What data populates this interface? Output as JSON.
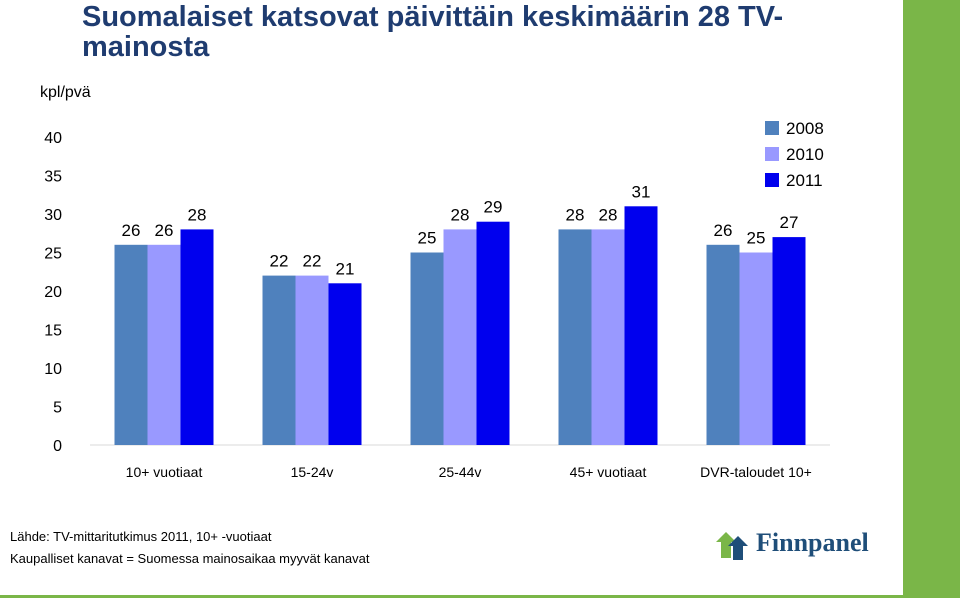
{
  "header": {
    "title": "Suomalaiset katsovat päivittäin keskimäärin 28 TV-mainosta",
    "unit_label": "kpl/pvä"
  },
  "chart_data": {
    "type": "bar",
    "title": "Suomalaiset katsovat päivittäin keskimäärin 28 TV-mainosta",
    "ylabel": "kpl/pvä",
    "xlabel": "",
    "categories": [
      "10+ vuotiaat",
      "15-24v",
      "25-44v",
      "45+ vuotiaat",
      "DVR-taloudet 10+"
    ],
    "series": [
      {
        "name": "2008",
        "color": "#4f81bd",
        "values": [
          26,
          22,
          25,
          28,
          26
        ]
      },
      {
        "name": "2010",
        "color": "#9999ff",
        "values": [
          26,
          22,
          28,
          28,
          25
        ]
      },
      {
        "name": "2011",
        "color": "#0000ee",
        "values": [
          28,
          21,
          29,
          31,
          27
        ]
      }
    ],
    "ylim": [
      0,
      40
    ],
    "yticks": [
      0,
      5,
      10,
      15,
      20,
      25,
      30,
      35,
      40
    ],
    "grid": false,
    "legend_position": "top-right",
    "data_labels": true
  },
  "footer": {
    "source_line1": "Lähde: TV-mittaritutkimus 2011, 10+ -vuotiaat",
    "source_line2": "Kaupalliset kanavat = Suomessa mainosaikaa myyvät kanavat",
    "logo_text": "Finnpanel",
    "logo_icon": "finnpanel-arrow-icon"
  },
  "colors": {
    "title": "#1f3c70",
    "accent_strip": "#7ab648"
  }
}
